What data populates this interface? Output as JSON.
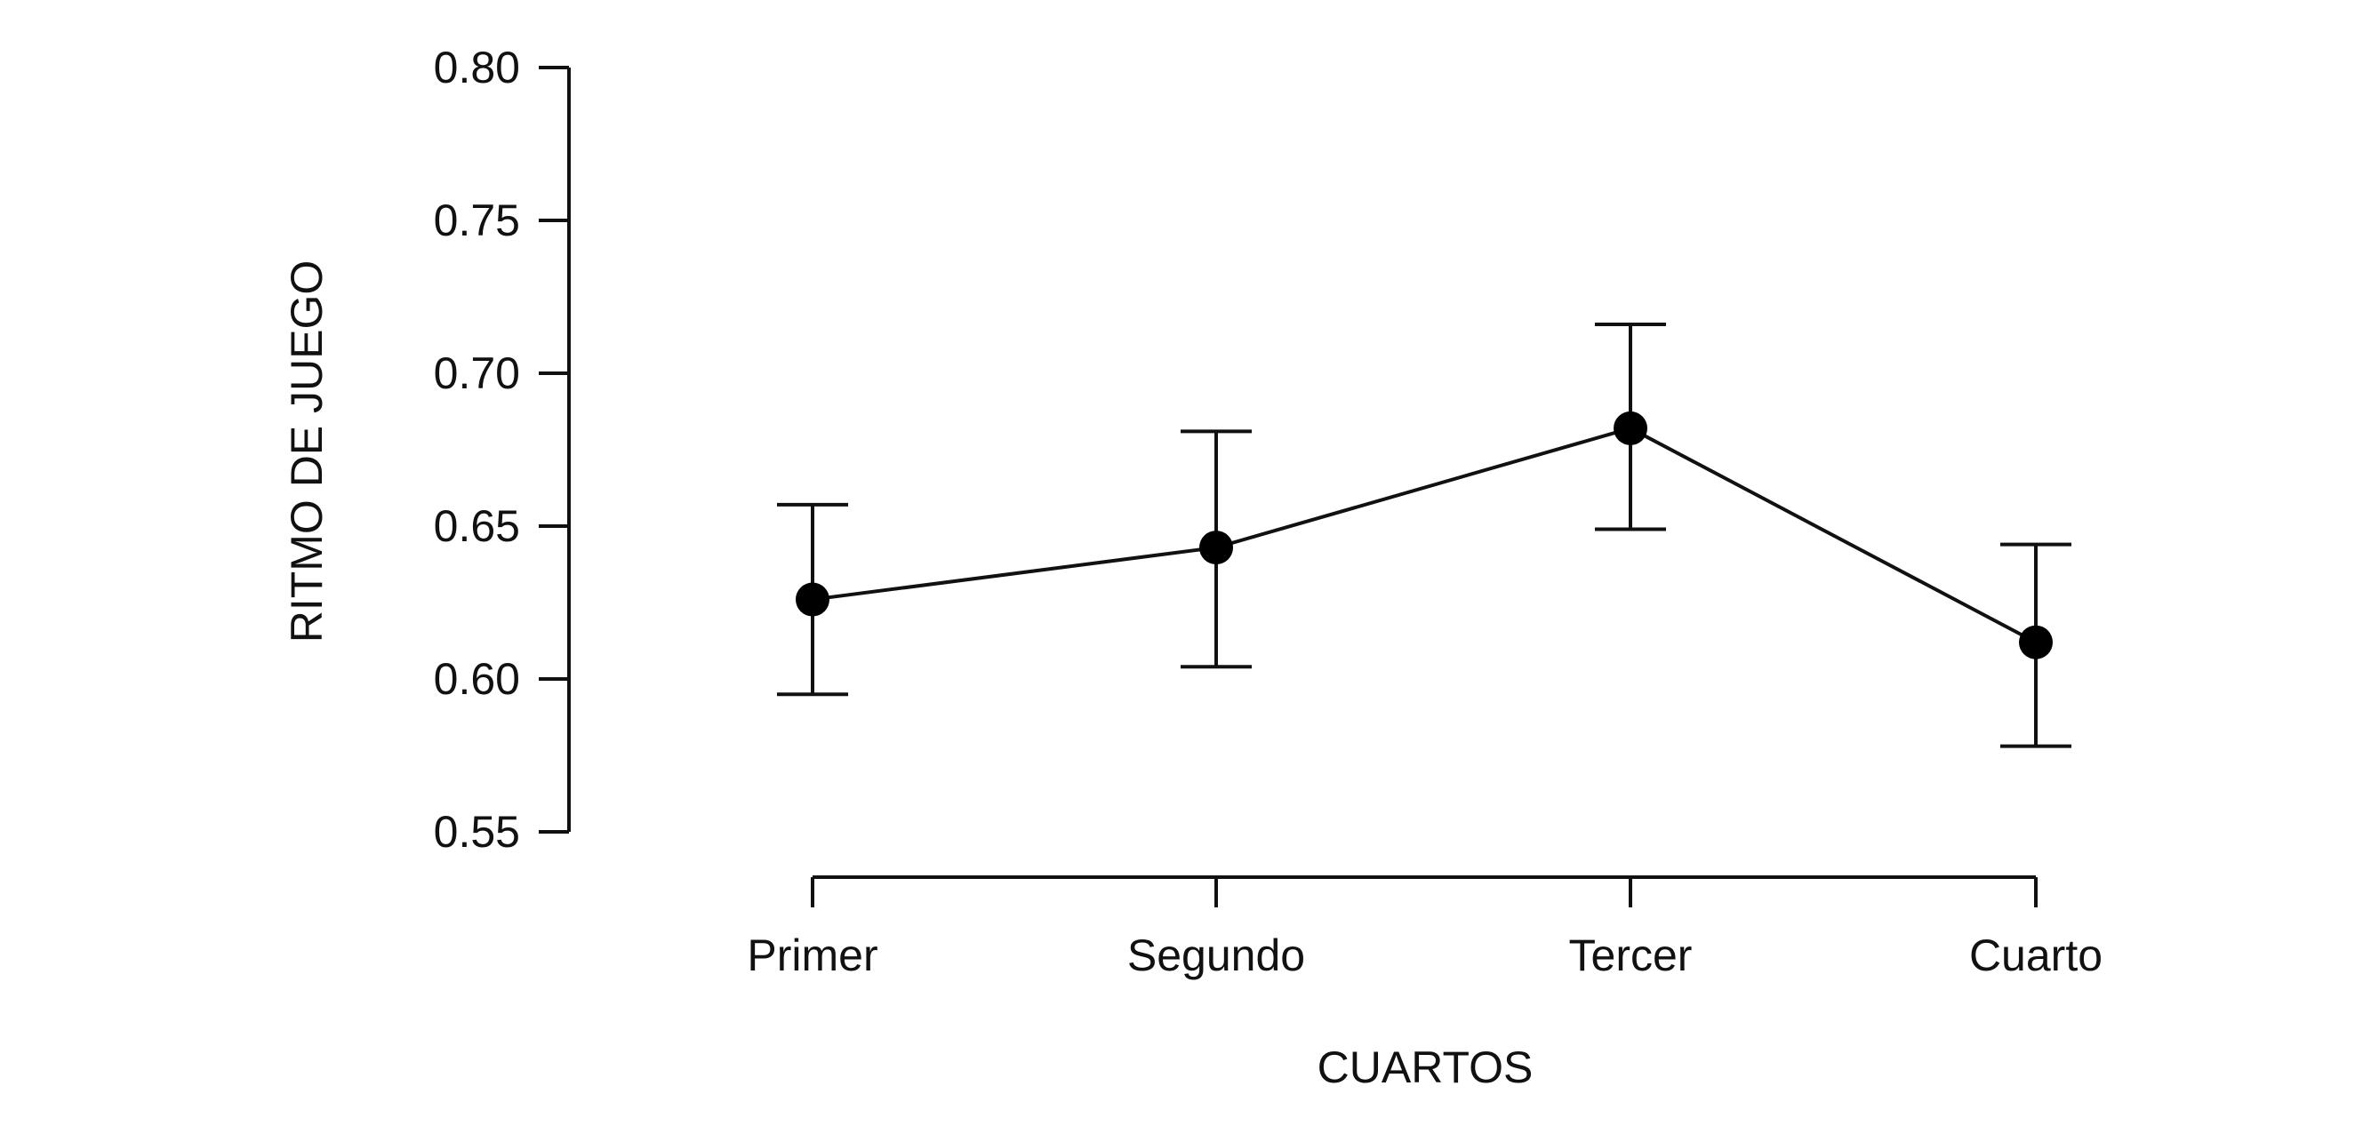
{
  "chart_data": {
    "type": "line",
    "categories": [
      "Primer",
      "Segundo",
      "Tercer",
      "Cuarto"
    ],
    "series": [
      {
        "values": [
          0.626,
          0.643,
          0.682,
          0.612
        ],
        "error_low": [
          0.595,
          0.604,
          0.649,
          0.578
        ],
        "error_high": [
          0.657,
          0.681,
          0.716,
          0.644
        ]
      }
    ],
    "xlabel": "CUARTOS",
    "ylabel": "RITMO DE JUEGO",
    "ylim": [
      0.55,
      0.8
    ],
    "yticks": [
      "0.55",
      "0.60",
      "0.65",
      "0.70",
      "0.75",
      "0.80"
    ],
    "grid": false,
    "legend": "none",
    "colors": {
      "line": "#111111",
      "marker": "#000000"
    }
  }
}
